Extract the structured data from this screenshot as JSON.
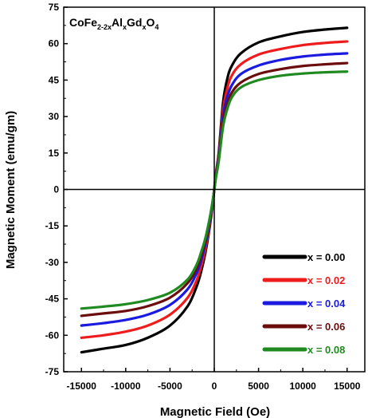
{
  "chart_data": {
    "type": "line",
    "title": "",
    "annotation": {
      "parts": [
        {
          "text": "CoFe",
          "sub": false
        },
        {
          "text": "2-2x",
          "sub": true
        },
        {
          "text": "Al",
          "sub": false
        },
        {
          "text": "x",
          "sub": true
        },
        {
          "text": "Gd",
          "sub": false
        },
        {
          "text": "x",
          "sub": true
        },
        {
          "text": "O",
          "sub": false
        },
        {
          "text": "4",
          "sub": true
        }
      ]
    },
    "xlabel": "Magnetic Field (Oe)",
    "ylabel": "Magnetic Moment (emu/gm)",
    "xlim": [
      -17000,
      17000
    ],
    "ylim": [
      -75,
      75
    ],
    "xticks": [
      -15000,
      -10000,
      -5000,
      0,
      5000,
      10000,
      15000
    ],
    "xtick_labels": [
      "-15000",
      "-10000",
      "-5000",
      "0",
      "5000",
      "10000",
      "15000"
    ],
    "yticks": [
      -75,
      -60,
      -45,
      -30,
      -15,
      0,
      15,
      30,
      45,
      60,
      75
    ],
    "ytick_labels": [
      "-75",
      "-60",
      "-45",
      "-30",
      "-15",
      "0",
      "15",
      "30",
      "45",
      "60",
      "75"
    ],
    "grid": false,
    "legend_position": "bottom-right",
    "x": [
      -15000,
      -12500,
      -10000,
      -7500,
      -5000,
      -3000,
      -2000,
      -1500,
      -1000,
      -500,
      -200,
      0,
      200,
      500,
      1000,
      1500,
      2000,
      3000,
      5000,
      7500,
      10000,
      12500,
      15000
    ],
    "series": [
      {
        "name": "x = 0.00",
        "color": "#000000",
        "values": [
          -67,
          -65.5,
          -64,
          -61,
          -56,
          -48,
          -40,
          -34,
          -26,
          -15,
          -7,
          0,
          7,
          15,
          36,
          46,
          51,
          56,
          60.5,
          63,
          64.8,
          65.8,
          66.5
        ]
      },
      {
        "name": "x = 0.02",
        "color": "#ee1c1c",
        "values": [
          -61,
          -60,
          -58.5,
          -56,
          -51.5,
          -44.5,
          -37.5,
          -32,
          -24.5,
          -14,
          -6.5,
          0,
          6.5,
          14,
          33,
          42,
          47,
          51.5,
          55.5,
          57.8,
          59.4,
          60.3,
          60.9
        ]
      },
      {
        "name": "x = 0.04",
        "color": "#1a1ae0",
        "values": [
          -56,
          -55,
          -53.7,
          -51.5,
          -47.5,
          -41,
          -34.5,
          -29.5,
          -22.5,
          -13,
          -6,
          0,
          6,
          13,
          30.5,
          38.5,
          43,
          47.5,
          51,
          53.3,
          54.7,
          55.5,
          56
        ]
      },
      {
        "name": "x = 0.06",
        "color": "#6b0d0d",
        "values": [
          -52,
          -51,
          -50,
          -48,
          -44.5,
          -38.5,
          -32.5,
          -27.5,
          -21,
          -12,
          -5.5,
          0,
          5.5,
          12,
          28,
          35.5,
          40,
          44,
          47.5,
          49.5,
          50.8,
          51.5,
          52
        ]
      },
      {
        "name": "x = 0.08",
        "color": "#1f8a1f",
        "values": [
          -49,
          -48.2,
          -47.2,
          -45.5,
          -42.5,
          -37,
          -31,
          -26,
          -20,
          -11.5,
          -5.2,
          0,
          5.2,
          11.5,
          26,
          33.5,
          38,
          42,
          45,
          46.8,
          47.7,
          48.2,
          48.5
        ]
      }
    ]
  }
}
